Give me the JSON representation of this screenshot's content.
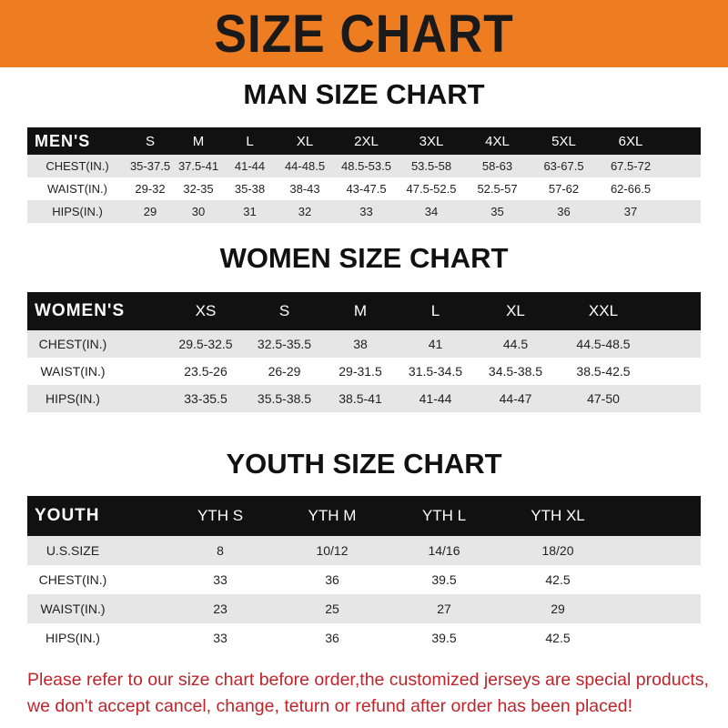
{
  "banner_title": "SIZE CHART",
  "colors": {
    "banner": "#ee7d22",
    "header_row": "#111111",
    "shaded_row": "#e6e6e6",
    "notice_text": "#c0242b"
  },
  "men": {
    "title": "MAN SIZE CHART",
    "header": "MEN'S",
    "sizes": [
      "S",
      "M",
      "L",
      "XL",
      "2XL",
      "3XL",
      "4XL",
      "5XL",
      "6XL"
    ],
    "rows": [
      {
        "label": "CHEST(IN.)",
        "values": [
          "35-37.5",
          "37.5-41",
          "41-44",
          "44-48.5",
          "48.5-53.5",
          "53.5-58",
          "58-63",
          "63-67.5",
          "67.5-72"
        ]
      },
      {
        "label": "WAIST(IN.)",
        "values": [
          "29-32",
          "32-35",
          "35-38",
          "38-43",
          "43-47.5",
          "47.5-52.5",
          "52.5-57",
          "57-62",
          "62-66.5"
        ]
      },
      {
        "label": "HIPS(IN.)",
        "values": [
          "29",
          "30",
          "31",
          "32",
          "33",
          "34",
          "35",
          "36",
          "37"
        ]
      }
    ]
  },
  "women": {
    "title": "WOMEN SIZE CHART",
    "header": "WOMEN'S",
    "sizes": [
      "XS",
      "S",
      "M",
      "L",
      "XL",
      "XXL"
    ],
    "rows": [
      {
        "label": "CHEST(IN.)",
        "values": [
          "29.5-32.5",
          "32.5-35.5",
          "38",
          "41",
          "44.5",
          "44.5-48.5"
        ]
      },
      {
        "label": "WAIST(IN.)",
        "values": [
          "23.5-26",
          "26-29",
          "29-31.5",
          "31.5-34.5",
          "34.5-38.5",
          "38.5-42.5"
        ]
      },
      {
        "label": "HIPS(IN.)",
        "values": [
          "33-35.5",
          "35.5-38.5",
          "38.5-41",
          "41-44",
          "44-47",
          "47-50"
        ]
      }
    ]
  },
  "youth": {
    "title": "YOUTH SIZE CHART",
    "header": "YOUTH",
    "sizes": [
      "YTH S",
      "YTH M",
      "YTH L",
      "YTH XL"
    ],
    "rows": [
      {
        "label": "U.S.SIZE",
        "values": [
          "8",
          "10/12",
          "14/16",
          "18/20"
        ]
      },
      {
        "label": "CHEST(IN.)",
        "values": [
          "33",
          "36",
          "39.5",
          "42.5"
        ]
      },
      {
        "label": "WAIST(IN.)",
        "values": [
          "23",
          "25",
          "27",
          "29"
        ]
      },
      {
        "label": "HIPS(IN.)",
        "values": [
          "33",
          "36",
          "39.5",
          "42.5"
        ]
      }
    ]
  },
  "notice": {
    "line1": "Please refer to our size chart before order,the customized jerseys are special products,",
    "line2": "we don't accept cancel, change, teturn or refund after order has been placed!"
  }
}
